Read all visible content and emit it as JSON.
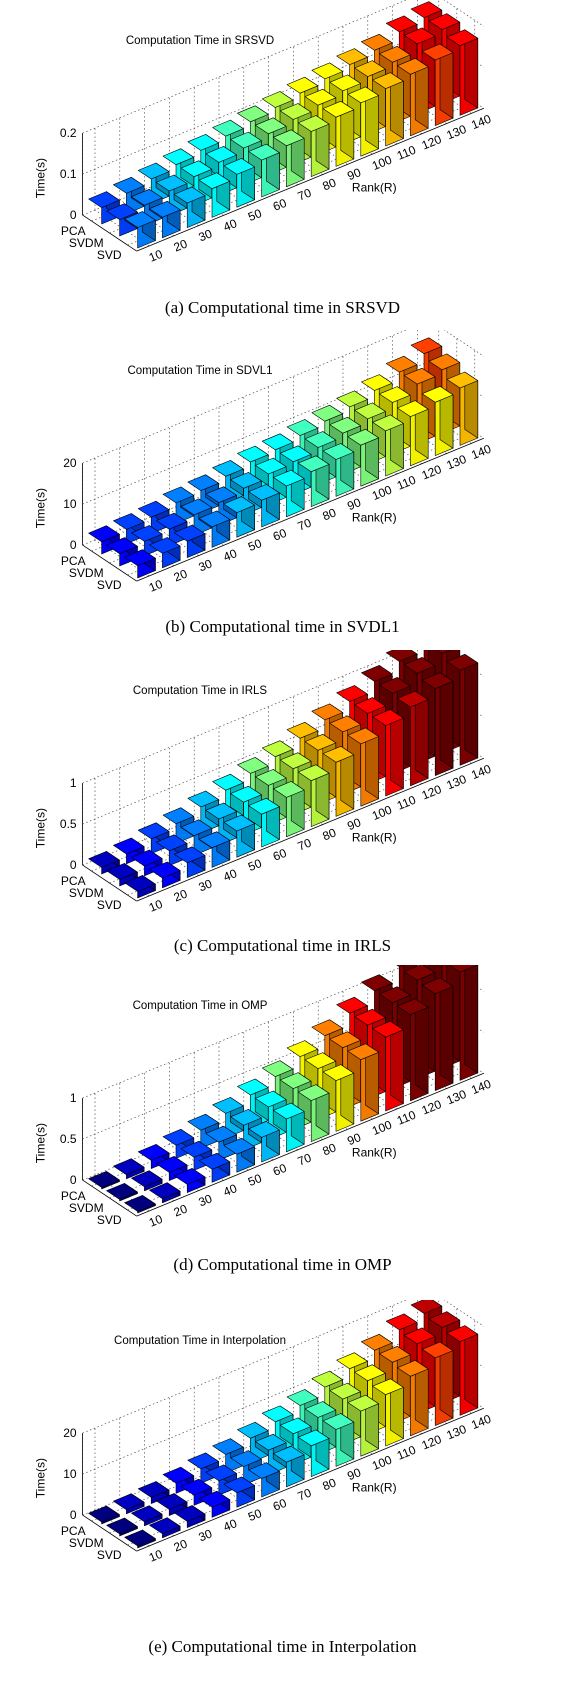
{
  "categories": [
    "10",
    "20",
    "30",
    "40",
    "50",
    "60",
    "70",
    "80",
    "90",
    "100",
    "110",
    "120",
    "130",
    "140"
  ],
  "methods": [
    "PCA",
    "SVDM",
    "SVD"
  ],
  "rank_label": "Rank(R)",
  "colors": [
    "#00007f",
    "#0000bf",
    "#0000ff",
    "#0040ff",
    "#0080ff",
    "#00bfff",
    "#00ffff",
    "#40ffbf",
    "#80ff80",
    "#bfff40",
    "#ffff00",
    "#ffbf00",
    "#ff8000",
    "#ff4000",
    "#ff0000",
    "#bf0000",
    "#7f0000"
  ],
  "chart_data": [
    {
      "type": "bar",
      "title": "Computation Time in SRSVD",
      "caption": "(a) Computational time in SRSVD",
      "zlabel": "Time(s)",
      "zticks": [
        "0",
        "0.1",
        "0.2"
      ],
      "zlim": [
        0,
        0.2
      ],
      "series": [
        {
          "name": "PCA",
          "values": [
            0.04,
            0.05,
            0.06,
            0.07,
            0.08,
            0.09,
            0.1,
            0.11,
            0.12,
            0.13,
            0.14,
            0.15,
            0.17,
            0.18
          ]
        },
        {
          "name": "SVDM",
          "values": [
            0.04,
            0.05,
            0.06,
            0.07,
            0.08,
            0.09,
            0.1,
            0.11,
            0.12,
            0.13,
            0.14,
            0.15,
            0.17,
            0.18
          ]
        },
        {
          "name": "SVD",
          "values": [
            0.05,
            0.05,
            0.06,
            0.07,
            0.08,
            0.09,
            0.1,
            0.11,
            0.12,
            0.13,
            0.14,
            0.15,
            0.16,
            0.17
          ]
        }
      ]
    },
    {
      "type": "bar",
      "title": "Computation Time in SDVL1",
      "caption": "(b) Computational time in SVDL1",
      "zlabel": "Time(s)",
      "zticks": [
        "0",
        "10",
        "20"
      ],
      "zlim": [
        0,
        20
      ],
      "series": [
        {
          "name": "PCA",
          "values": [
            3,
            3.5,
            4,
            5,
            5.5,
            6.5,
            7.5,
            8,
            9,
            10,
            11,
            12.5,
            14.5,
            16.5
          ]
        },
        {
          "name": "SVDM",
          "values": [
            3,
            3.5,
            4,
            5,
            5.5,
            6.5,
            7.5,
            8,
            9,
            10,
            11,
            12.5,
            14.5,
            15.5
          ]
        },
        {
          "name": "SVD",
          "values": [
            3,
            3.5,
            4,
            5,
            6,
            6.5,
            7.5,
            8.5,
            9,
            10,
            11,
            12,
            13,
            14
          ]
        }
      ]
    },
    {
      "type": "bar",
      "title": "Computation Time in IRLS",
      "caption": "(c) Computational time in IRLS",
      "zlabel": "Time(s)",
      "zticks": [
        "0",
        "0.5",
        "1"
      ],
      "zlim": [
        0,
        1
      ],
      "series": [
        {
          "name": "PCA",
          "values": [
            0.08,
            0.12,
            0.18,
            0.24,
            0.32,
            0.4,
            0.48,
            0.56,
            0.66,
            0.76,
            0.86,
            0.98,
            1.1,
            1.25
          ]
        },
        {
          "name": "SVDM",
          "values": [
            0.08,
            0.12,
            0.18,
            0.24,
            0.32,
            0.4,
            0.48,
            0.56,
            0.66,
            0.76,
            0.86,
            0.98,
            1.1,
            1.22
          ]
        },
        {
          "name": "SVD",
          "values": [
            0.08,
            0.12,
            0.18,
            0.24,
            0.32,
            0.4,
            0.48,
            0.56,
            0.66,
            0.76,
            0.86,
            0.96,
            1.06,
            1.16
          ]
        }
      ]
    },
    {
      "type": "bar",
      "title": "Computation Time in OMP",
      "caption": "(d) Computational time in OMP",
      "zlabel": "Time(s)",
      "zticks": [
        "0",
        "0.5",
        "1"
      ],
      "zlim": [
        0,
        1
      ],
      "series": [
        {
          "name": "PCA",
          "values": [
            0.02,
            0.05,
            0.1,
            0.16,
            0.22,
            0.3,
            0.4,
            0.5,
            0.62,
            0.75,
            0.9,
            1.05,
            1.22,
            1.4
          ]
        },
        {
          "name": "SVDM",
          "values": [
            0.02,
            0.05,
            0.1,
            0.16,
            0.22,
            0.3,
            0.4,
            0.5,
            0.62,
            0.75,
            0.9,
            1.05,
            1.2,
            1.35
          ]
        },
        {
          "name": "SVD",
          "values": [
            0.02,
            0.05,
            0.1,
            0.16,
            0.22,
            0.3,
            0.4,
            0.5,
            0.62,
            0.75,
            0.9,
            1.05,
            1.18,
            1.32
          ]
        }
      ]
    },
    {
      "type": "bar",
      "title": "Computation Time in Interpolation",
      "caption": "(e) Computational time in Interpolation",
      "zlabel": "Time(s)",
      "zticks": [
        "0",
        "10",
        "20"
      ],
      "zlim": [
        0,
        20
      ],
      "series": [
        {
          "name": "PCA",
          "values": [
            0.5,
            1,
            1.5,
            2.5,
            3.5,
            4.5,
            6,
            7.5,
            9,
            11,
            13,
            15,
            17.5,
            19
          ]
        },
        {
          "name": "SVDM",
          "values": [
            0.5,
            1,
            1.5,
            2.5,
            3.5,
            4.5,
            6,
            7.5,
            9,
            11,
            13,
            15,
            17,
            18.5
          ]
        },
        {
          "name": "SVD",
          "values": [
            0.5,
            1,
            1.5,
            2.5,
            3.5,
            4.5,
            6,
            7.5,
            9,
            11,
            12.5,
            14.5,
            16.5,
            18
          ]
        }
      ]
    }
  ]
}
